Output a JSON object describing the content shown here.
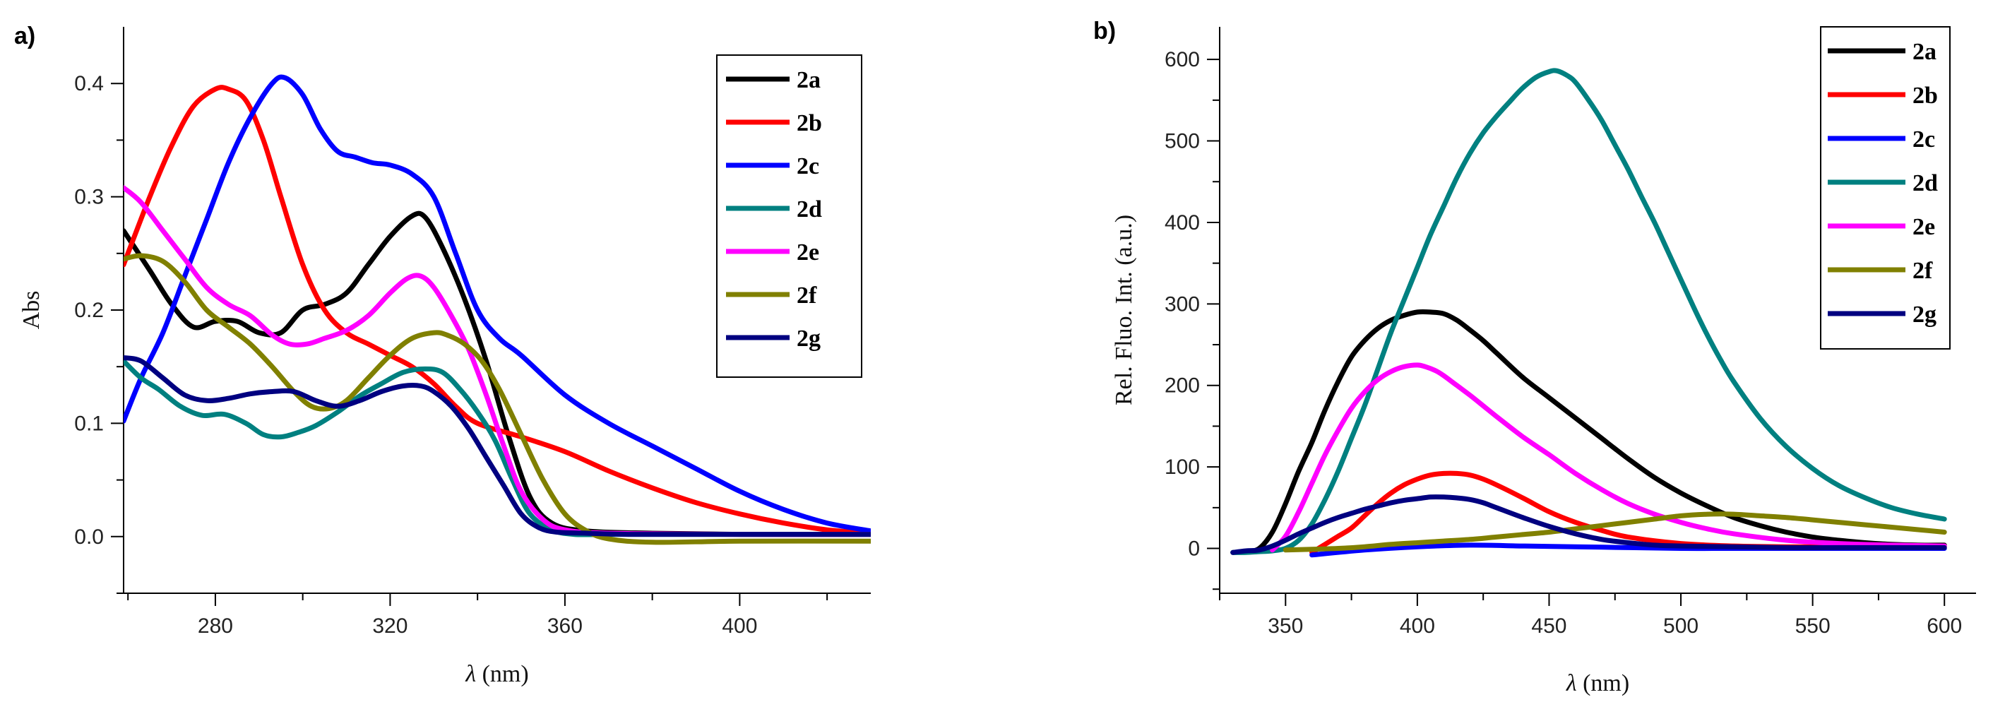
{
  "chart_data": [
    {
      "type": "line",
      "panel_label": "a)",
      "title": "",
      "xlabel_symbol": "λ",
      "xlabel_unit": "(nm)",
      "ylabel": "Abs",
      "xlim": [
        259,
        430
      ],
      "ylim": [
        -0.05,
        0.45
      ],
      "x_ticks": [
        280,
        320,
        360,
        400
      ],
      "x_minor_ticks": [
        260,
        300,
        340,
        380,
        420
      ],
      "x_tick_labels": [
        "280",
        "320",
        "360",
        "400"
      ],
      "y_ticks": [
        0.0,
        0.1,
        0.2,
        0.3,
        0.4
      ],
      "y_minor_ticks": [
        -0.05,
        0.05,
        0.15,
        0.25,
        0.35
      ],
      "y_tick_labels": [
        "0.0",
        "0.1",
        "0.2",
        "0.3",
        "0.4"
      ],
      "grid": false,
      "legend_position": "top-right",
      "series": [
        {
          "name": "2a",
          "color": "#000000",
          "x": [
            259,
            265,
            270,
            275,
            280,
            285,
            290,
            295,
            300,
            305,
            310,
            315,
            320,
            325,
            328,
            332,
            337,
            342,
            347,
            352,
            357,
            365,
            380,
            400,
            430
          ],
          "y": [
            0.27,
            0.235,
            0.205,
            0.185,
            0.19,
            0.19,
            0.18,
            0.18,
            0.2,
            0.205,
            0.215,
            0.24,
            0.265,
            0.283,
            0.282,
            0.255,
            0.21,
            0.155,
            0.09,
            0.035,
            0.012,
            0.005,
            0.003,
            0.002,
            0.002
          ]
        },
        {
          "name": "2b",
          "color": "#ff0000",
          "x": [
            259,
            265,
            270,
            275,
            280,
            283,
            287,
            291,
            295,
            300,
            305,
            310,
            315,
            320,
            325,
            330,
            335,
            340,
            350,
            360,
            370,
            380,
            390,
            400,
            410,
            420,
            430
          ],
          "y": [
            0.24,
            0.3,
            0.345,
            0.38,
            0.395,
            0.395,
            0.385,
            0.35,
            0.3,
            0.24,
            0.2,
            0.18,
            0.17,
            0.16,
            0.15,
            0.135,
            0.115,
            0.1,
            0.088,
            0.075,
            0.058,
            0.043,
            0.03,
            0.02,
            0.012,
            0.006,
            0.003
          ]
        },
        {
          "name": "2c",
          "color": "#0000ff",
          "x": [
            259,
            263,
            268,
            273,
            278,
            283,
            288,
            293,
            296,
            300,
            304,
            308,
            312,
            316,
            320,
            325,
            330,
            335,
            340,
            345,
            350,
            360,
            370,
            380,
            390,
            400,
            410,
            420,
            430
          ],
          "y": [
            0.102,
            0.14,
            0.18,
            0.23,
            0.28,
            0.33,
            0.37,
            0.4,
            0.405,
            0.39,
            0.36,
            0.34,
            0.335,
            0.33,
            0.328,
            0.32,
            0.3,
            0.25,
            0.2,
            0.175,
            0.16,
            0.125,
            0.1,
            0.08,
            0.06,
            0.04,
            0.024,
            0.012,
            0.005
          ]
        },
        {
          "name": "2d",
          "color": "#008080",
          "x": [
            259,
            263,
            267,
            272,
            277,
            282,
            287,
            291,
            295,
            299,
            303,
            308,
            313,
            318,
            323,
            328,
            332,
            336,
            340,
            344,
            348,
            352,
            357,
            362,
            370,
            380,
            400,
            430
          ],
          "y": [
            0.155,
            0.14,
            0.13,
            0.115,
            0.107,
            0.108,
            0.1,
            0.09,
            0.088,
            0.092,
            0.098,
            0.11,
            0.124,
            0.135,
            0.145,
            0.148,
            0.145,
            0.13,
            0.11,
            0.085,
            0.05,
            0.02,
            0.006,
            0.002,
            0.002,
            0.002,
            0.002,
            0.002
          ]
        },
        {
          "name": "2e",
          "color": "#ff00ff",
          "x": [
            259,
            263,
            268,
            273,
            278,
            283,
            288,
            293,
            297,
            301,
            305,
            310,
            315,
            320,
            324,
            327,
            330,
            334,
            338,
            342,
            346,
            350,
            355,
            360,
            370,
            400,
            430
          ],
          "y": [
            0.308,
            0.295,
            0.27,
            0.245,
            0.22,
            0.205,
            0.195,
            0.178,
            0.17,
            0.17,
            0.175,
            0.182,
            0.195,
            0.215,
            0.228,
            0.23,
            0.22,
            0.195,
            0.165,
            0.125,
            0.08,
            0.04,
            0.015,
            0.006,
            0.003,
            0.002,
            0.002
          ]
        },
        {
          "name": "2f",
          "color": "#808000",
          "x": [
            259,
            263,
            268,
            273,
            278,
            283,
            288,
            293,
            298,
            302,
            306,
            310,
            315,
            320,
            325,
            330,
            333,
            337,
            341,
            345,
            350,
            355,
            360,
            365,
            370,
            380,
            400,
            430
          ],
          "y": [
            0.245,
            0.248,
            0.243,
            0.225,
            0.2,
            0.185,
            0.17,
            0.15,
            0.128,
            0.115,
            0.113,
            0.12,
            0.14,
            0.16,
            0.175,
            0.18,
            0.178,
            0.17,
            0.155,
            0.13,
            0.09,
            0.05,
            0.02,
            0.005,
            -0.002,
            -0.005,
            -0.004,
            -0.004
          ]
        },
        {
          "name": "2g",
          "color": "#000080",
          "x": [
            259,
            263,
            268,
            273,
            278,
            283,
            288,
            293,
            298,
            303,
            308,
            313,
            318,
            323,
            327,
            330,
            334,
            338,
            342,
            346,
            350,
            354,
            358,
            365,
            375,
            400,
            430
          ],
          "y": [
            0.158,
            0.155,
            0.14,
            0.125,
            0.12,
            0.122,
            0.126,
            0.128,
            0.128,
            0.12,
            0.115,
            0.12,
            0.128,
            0.133,
            0.133,
            0.128,
            0.115,
            0.095,
            0.07,
            0.045,
            0.02,
            0.008,
            0.004,
            0.003,
            0.002,
            0.002,
            0.002
          ]
        }
      ]
    },
    {
      "type": "line",
      "panel_label": "b)",
      "title": "",
      "xlabel_symbol": "λ",
      "xlabel_unit": "(nm)",
      "ylabel": "Rel. Fluo. Int. (a.u.)",
      "xlim": [
        325,
        612
      ],
      "ylim": [
        -55,
        640
      ],
      "x_ticks": [
        350,
        400,
        450,
        500,
        550,
        600
      ],
      "x_minor_ticks": [
        325,
        375,
        425,
        475,
        525,
        575
      ],
      "x_tick_labels": [
        "350",
        "400",
        "450",
        "500",
        "550",
        "600"
      ],
      "y_ticks": [
        0,
        100,
        200,
        300,
        400,
        500,
        600
      ],
      "y_minor_ticks": [
        -50,
        50,
        150,
        250,
        350,
        450,
        550
      ],
      "y_tick_labels": [
        "0",
        "100",
        "200",
        "300",
        "400",
        "500",
        "600"
      ],
      "grid": false,
      "legend_position": "top-right",
      "series": [
        {
          "name": "2a",
          "color": "#000000",
          "x": [
            330,
            335,
            340,
            345,
            350,
            355,
            360,
            365,
            370,
            375,
            380,
            385,
            390,
            395,
            400,
            405,
            410,
            415,
            420,
            425,
            430,
            440,
            450,
            460,
            470,
            480,
            490,
            500,
            510,
            520,
            530,
            540,
            550,
            560,
            570,
            580,
            590,
            600
          ],
          "y": [
            -5,
            -4,
            0,
            20,
            55,
            95,
            130,
            170,
            205,
            235,
            255,
            270,
            280,
            286,
            290,
            290,
            288,
            280,
            268,
            255,
            240,
            210,
            185,
            160,
            135,
            110,
            87,
            68,
            52,
            38,
            28,
            20,
            14,
            10,
            7,
            5,
            4,
            4
          ]
        },
        {
          "name": "2b",
          "color": "#ff0000",
          "x": [
            360,
            365,
            370,
            375,
            380,
            385,
            390,
            395,
            400,
            405,
            410,
            415,
            420,
            425,
            430,
            440,
            450,
            460,
            470,
            480,
            500,
            520,
            540,
            560,
            580,
            600
          ],
          "y": [
            -5,
            5,
            15,
            25,
            40,
            55,
            68,
            78,
            85,
            90,
            92,
            92,
            90,
            85,
            78,
            62,
            45,
            32,
            22,
            14,
            6,
            3,
            2,
            2,
            2,
            2
          ]
        },
        {
          "name": "2c",
          "color": "#0000ff",
          "x": [
            360,
            380,
            400,
            420,
            440,
            460,
            480,
            500,
            520,
            540,
            560,
            580,
            600
          ],
          "y": [
            -8,
            -2,
            2,
            4,
            3,
            2,
            1,
            0,
            0,
            0,
            0,
            0,
            0
          ]
        },
        {
          "name": "2d",
          "color": "#008080",
          "x": [
            330,
            335,
            340,
            345,
            350,
            355,
            360,
            365,
            370,
            375,
            380,
            385,
            390,
            395,
            400,
            405,
            410,
            415,
            420,
            425,
            430,
            435,
            440,
            445,
            450,
            453,
            457,
            460,
            465,
            470,
            475,
            480,
            485,
            490,
            495,
            500,
            505,
            510,
            515,
            520,
            530,
            540,
            550,
            560,
            570,
            580,
            590,
            600
          ],
          "y": [
            -5,
            -5,
            -4,
            -3,
            0,
            10,
            30,
            60,
            95,
            135,
            175,
            220,
            265,
            305,
            345,
            385,
            420,
            455,
            485,
            510,
            530,
            548,
            565,
            578,
            585,
            586,
            580,
            572,
            550,
            525,
            495,
            465,
            432,
            400,
            365,
            330,
            295,
            262,
            232,
            205,
            160,
            125,
            98,
            77,
            62,
            50,
            42,
            36
          ]
        },
        {
          "name": "2e",
          "color": "#ff00ff",
          "x": [
            345,
            350,
            355,
            360,
            365,
            370,
            375,
            380,
            385,
            390,
            395,
            400,
            403,
            407,
            410,
            415,
            420,
            425,
            430,
            440,
            450,
            460,
            470,
            480,
            490,
            500,
            510,
            520,
            540,
            560,
            580,
            600
          ],
          "y": [
            -2,
            15,
            45,
            80,
            115,
            145,
            172,
            192,
            207,
            217,
            223,
            225,
            223,
            218,
            212,
            200,
            188,
            175,
            162,
            137,
            115,
            92,
            72,
            55,
            42,
            32,
            24,
            18,
            10,
            6,
            4,
            3
          ]
        },
        {
          "name": "2f",
          "color": "#808000",
          "x": [
            350,
            360,
            370,
            380,
            390,
            400,
            410,
            420,
            430,
            440,
            450,
            460,
            470,
            480,
            490,
            500,
            510,
            520,
            530,
            540,
            550,
            560,
            570,
            580,
            590,
            600
          ],
          "y": [
            -2,
            -1,
            0,
            2,
            5,
            7,
            9,
            11,
            14,
            17,
            20,
            24,
            28,
            32,
            36,
            40,
            42,
            42,
            40,
            38,
            35,
            32,
            29,
            26,
            23,
            20
          ]
        },
        {
          "name": "2g",
          "color": "#000080",
          "x": [
            330,
            335,
            340,
            345,
            350,
            355,
            360,
            365,
            370,
            375,
            380,
            385,
            390,
            395,
            400,
            405,
            410,
            415,
            420,
            425,
            430,
            440,
            450,
            460,
            470,
            480,
            490,
            500,
            520,
            540,
            560,
            580,
            600
          ],
          "y": [
            -5,
            -3,
            -2,
            3,
            10,
            18,
            25,
            32,
            38,
            43,
            48,
            52,
            56,
            59,
            61,
            63,
            63,
            62,
            60,
            56,
            50,
            38,
            27,
            18,
            11,
            7,
            4,
            3,
            2,
            1,
            1,
            1,
            1
          ]
        }
      ]
    }
  ]
}
